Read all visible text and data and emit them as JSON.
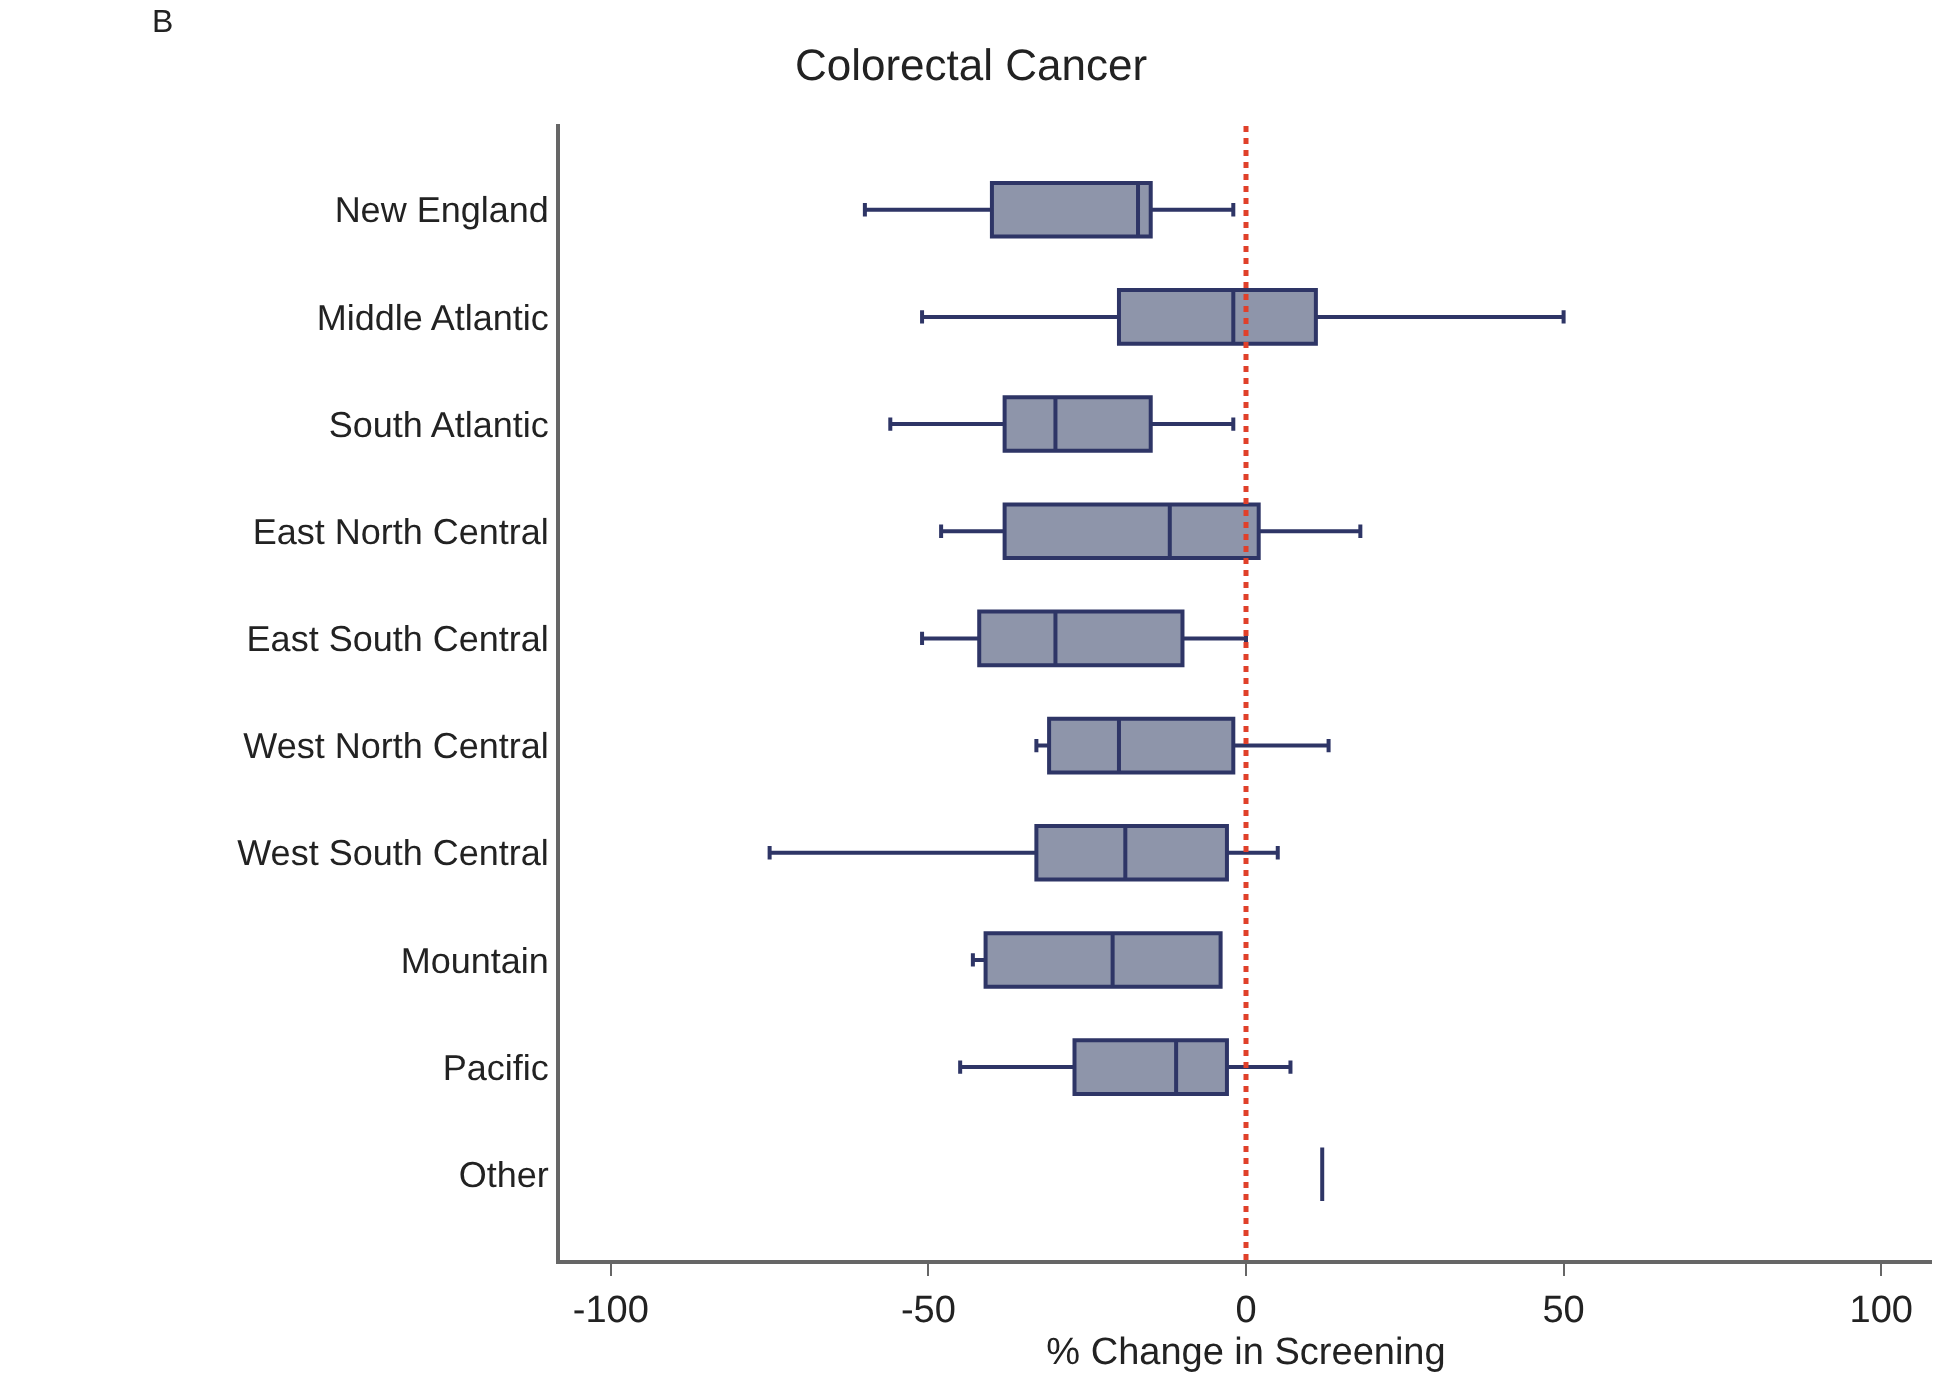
{
  "chart_data": {
    "type": "box",
    "orientation": "horizontal",
    "title": "Colorectal Cancer",
    "xlabel": "% Change in Screening",
    "annotations": [
      "B"
    ],
    "categories": [
      "New England",
      "Middle Atlantic",
      "South Atlantic",
      "East North Central",
      "East South Central",
      "West North Central",
      "West South Central",
      "Mountain",
      "Pacific",
      "Other"
    ],
    "series": [
      {
        "colors": [
          "#8e95aa",
          "#8e95aa",
          "#8e95aa",
          "#8e95aa",
          "#8e95aa",
          "#8e95aa",
          "#8e95aa",
          "#8e95aa",
          "#8e95aa",
          "#2e3566"
        ],
        "boxes": [
          {
            "low": -60,
            "q1": -40,
            "median": -17,
            "q3": -15,
            "high": -2
          },
          {
            "low": -51,
            "q1": -20,
            "median": -2,
            "q3": 11,
            "high": 50
          },
          {
            "low": -56,
            "q1": -38,
            "median": -30,
            "q3": -15,
            "high": -2
          },
          {
            "low": -48,
            "q1": -38,
            "median": -12,
            "q3": 2,
            "high": 18
          },
          {
            "low": -51,
            "q1": -42,
            "median": -30,
            "q3": -10,
            "high": 0
          },
          {
            "low": -33,
            "q1": -31,
            "median": -20,
            "q3": -2,
            "high": 13
          },
          {
            "low": -75,
            "q1": -33,
            "median": -19,
            "q3": -3,
            "high": 5
          },
          {
            "low": -43,
            "q1": -41,
            "median": -21,
            "q3": -4,
            "high": -4
          },
          {
            "low": -45,
            "q1": -27,
            "median": -11,
            "q3": -3,
            "high": 7
          },
          {
            "low": 12,
            "q1": 12,
            "median": 12,
            "q3": 12,
            "high": 12
          }
        ]
      }
    ],
    "xlim": [
      -108,
      108
    ],
    "xticks": [
      -100,
      -50,
      0,
      50,
      100
    ],
    "ref_lines": [
      {
        "axis": "x",
        "value": 0,
        "color": "#e0402a",
        "line_style": "dotted"
      }
    ]
  }
}
